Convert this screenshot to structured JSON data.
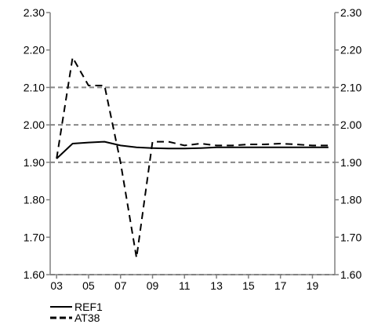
{
  "chart_data": {
    "type": "line",
    "x": [
      2003,
      2004,
      2005,
      2006,
      2007,
      2008,
      2009,
      2010,
      2011,
      2012,
      2013,
      2014,
      2015,
      2016,
      2017,
      2018,
      2019,
      2020
    ],
    "x_tick_labels": [
      "03",
      "05",
      "07",
      "09",
      "11",
      "13",
      "15",
      "17",
      "19"
    ],
    "x_tick_values": [
      2003,
      2005,
      2007,
      2009,
      2011,
      2013,
      2015,
      2017,
      2019
    ],
    "xlim": [
      2002.6,
      2020.4
    ],
    "ylim": [
      1.6,
      2.3
    ],
    "y_ticks": [
      1.6,
      1.7,
      1.8,
      1.9,
      2.0,
      2.1,
      2.2,
      2.3
    ],
    "y_tick_labels": [
      "1.60",
      "1.70",
      "1.80",
      "1.90",
      "2.00",
      "2.10",
      "2.20",
      "2.30"
    ],
    "secondary_y_axis": true,
    "gridlines": [
      1.6,
      1.9,
      2.0,
      2.1
    ],
    "series": [
      {
        "name": "REF1",
        "style": "solid",
        "color": "#000000",
        "values": [
          1.91,
          1.95,
          1.953,
          1.955,
          1.945,
          1.94,
          1.938,
          1.937,
          1.937,
          1.938,
          1.94,
          1.94,
          1.94,
          1.94,
          1.94,
          1.94,
          1.94,
          1.94
        ]
      },
      {
        "name": "AT38",
        "style": "dashed",
        "color": "#000000",
        "values": [
          1.91,
          2.18,
          2.105,
          2.105,
          1.9,
          1.645,
          1.955,
          1.955,
          1.945,
          1.95,
          1.945,
          1.945,
          1.948,
          1.948,
          1.95,
          1.948,
          1.945,
          1.945
        ]
      }
    ],
    "legend": {
      "position": "bottom-left",
      "entries": [
        "REF1",
        "AT38"
      ]
    }
  }
}
